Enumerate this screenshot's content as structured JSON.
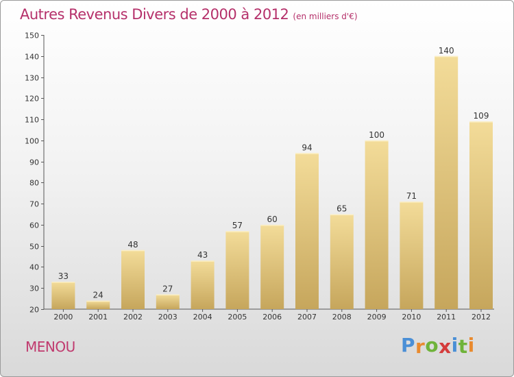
{
  "header": {
    "title": "Autres Revenus Divers de 2000 à 2012",
    "unit": "(en milliers d'€)"
  },
  "footer": {
    "commune": "MENOU",
    "logo_text": "Proxiti",
    "logo_colors": [
      "#4a8fd6",
      "#e98a2e",
      "#6fb33a",
      "#d43c3c",
      "#4a8fd6",
      "#6fb33a",
      "#e98a2e"
    ]
  },
  "chart_data": {
    "type": "bar",
    "categories": [
      "2000",
      "2001",
      "2002",
      "2003",
      "2004",
      "2005",
      "2006",
      "2007",
      "2008",
      "2009",
      "2010",
      "2011",
      "2012"
    ],
    "values": [
      33,
      24,
      48,
      27,
      43,
      57,
      60,
      94,
      65,
      100,
      71,
      140,
      109
    ],
    "ylim": [
      20,
      150
    ],
    "yticks": [
      20,
      30,
      40,
      50,
      60,
      70,
      80,
      90,
      100,
      110,
      120,
      130,
      140,
      150
    ],
    "grid": false,
    "bar_color_top": "#f3dc99",
    "bar_color_bottom": "#c6a65c",
    "text_color": "#333333"
  }
}
